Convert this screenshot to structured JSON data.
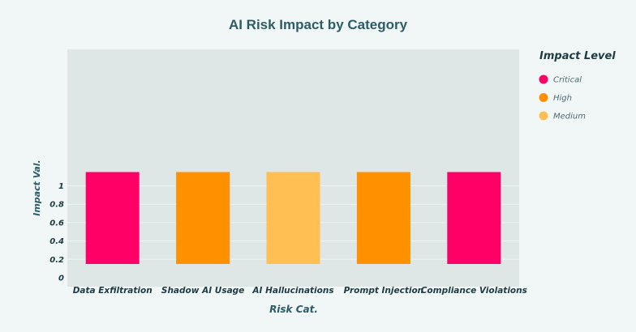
{
  "chart_data": {
    "type": "bar",
    "title": "AI Risk Impact by Category",
    "xlabel": "Risk Cat.",
    "ylabel": "Impact Val.",
    "categories": [
      "Data Exfiltration",
      "Shadow AI Usage",
      "AI Hallucinations",
      "Prompt Injection",
      "Compliance Violations"
    ],
    "bars": [
      {
        "category": "Data Exfiltration",
        "bottom": 0.15,
        "top": 1.15,
        "level": "Critical"
      },
      {
        "category": "Shadow AI Usage",
        "bottom": 0.15,
        "top": 1.15,
        "level": "High"
      },
      {
        "category": "AI Hallucinations",
        "bottom": 0.15,
        "top": 1.15,
        "level": "Medium"
      },
      {
        "category": "Prompt Injection",
        "bottom": 0.15,
        "top": 1.15,
        "level": "High"
      },
      {
        "category": "Compliance Violations",
        "bottom": 0.15,
        "top": 1.15,
        "level": "Critical"
      }
    ],
    "yticks": [
      "0",
      "0.2",
      "0.4",
      "0.6",
      "0.8",
      "1"
    ],
    "ylim": [
      0,
      1.2
    ],
    "grid": true,
    "legend": {
      "title": "Impact Level",
      "position": "right",
      "items": [
        {
          "label": "Critical",
          "color": "#ff0066"
        },
        {
          "label": "High",
          "color": "#ff9100"
        },
        {
          "label": "Medium",
          "color": "#ffbf52"
        }
      ]
    },
    "colors": {
      "plot_background": "#dee6e6",
      "grid": "#eef3f3",
      "page_background": "#f1f6f6"
    }
  }
}
